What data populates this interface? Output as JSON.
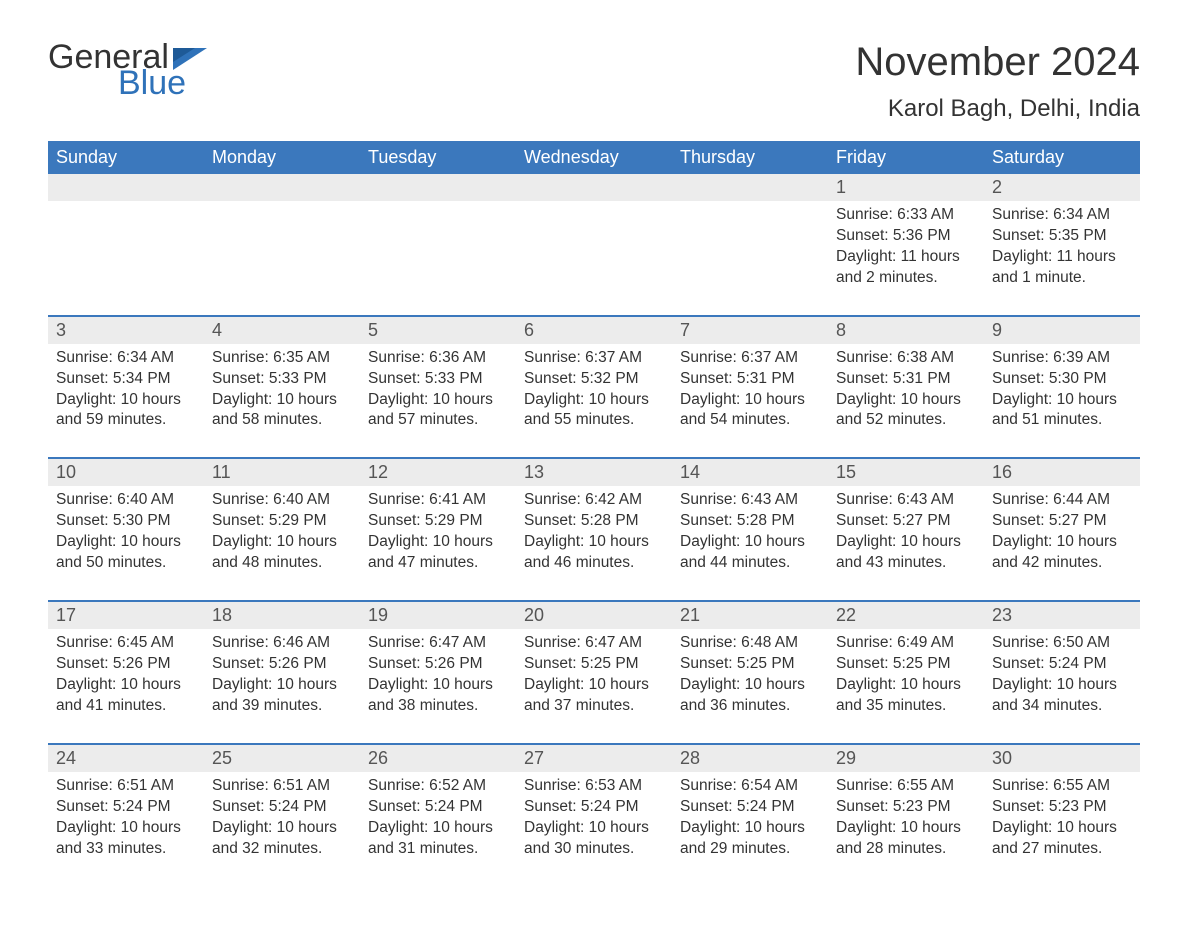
{
  "logo": {
    "text_general": "General",
    "text_blue": "Blue",
    "flag_color": "#2f72b9"
  },
  "title": "November 2024",
  "location": "Karol Bagh, Delhi, India",
  "colors": {
    "header_bg": "#3b78bd",
    "header_fg": "#ffffff",
    "accent_border": "#3b78bd",
    "daynum_bg": "#ececec",
    "text": "#333333",
    "page_bg": "#ffffff"
  },
  "typography": {
    "title_fontsize_pt": 30,
    "location_fontsize_pt": 18,
    "dayhdr_fontsize_pt": 14,
    "daynum_fontsize_pt": 14,
    "body_fontsize_pt": 12
  },
  "layout": {
    "columns": 7,
    "rows": 5,
    "week_start": "Sunday"
  },
  "day_headers": [
    "Sunday",
    "Monday",
    "Tuesday",
    "Wednesday",
    "Thursday",
    "Friday",
    "Saturday"
  ],
  "labels": {
    "sunrise": "Sunrise:",
    "sunset": "Sunset:",
    "daylight": "Daylight:"
  },
  "weeks": [
    [
      null,
      null,
      null,
      null,
      null,
      {
        "n": 1,
        "sunrise": "6:33 AM",
        "sunset": "5:36 PM",
        "daylight": "11 hours and 2 minutes."
      },
      {
        "n": 2,
        "sunrise": "6:34 AM",
        "sunset": "5:35 PM",
        "daylight": "11 hours and 1 minute."
      }
    ],
    [
      {
        "n": 3,
        "sunrise": "6:34 AM",
        "sunset": "5:34 PM",
        "daylight": "10 hours and 59 minutes."
      },
      {
        "n": 4,
        "sunrise": "6:35 AM",
        "sunset": "5:33 PM",
        "daylight": "10 hours and 58 minutes."
      },
      {
        "n": 5,
        "sunrise": "6:36 AM",
        "sunset": "5:33 PM",
        "daylight": "10 hours and 57 minutes."
      },
      {
        "n": 6,
        "sunrise": "6:37 AM",
        "sunset": "5:32 PM",
        "daylight": "10 hours and 55 minutes."
      },
      {
        "n": 7,
        "sunrise": "6:37 AM",
        "sunset": "5:31 PM",
        "daylight": "10 hours and 54 minutes."
      },
      {
        "n": 8,
        "sunrise": "6:38 AM",
        "sunset": "5:31 PM",
        "daylight": "10 hours and 52 minutes."
      },
      {
        "n": 9,
        "sunrise": "6:39 AM",
        "sunset": "5:30 PM",
        "daylight": "10 hours and 51 minutes."
      }
    ],
    [
      {
        "n": 10,
        "sunrise": "6:40 AM",
        "sunset": "5:30 PM",
        "daylight": "10 hours and 50 minutes."
      },
      {
        "n": 11,
        "sunrise": "6:40 AM",
        "sunset": "5:29 PM",
        "daylight": "10 hours and 48 minutes."
      },
      {
        "n": 12,
        "sunrise": "6:41 AM",
        "sunset": "5:29 PM",
        "daylight": "10 hours and 47 minutes."
      },
      {
        "n": 13,
        "sunrise": "6:42 AM",
        "sunset": "5:28 PM",
        "daylight": "10 hours and 46 minutes."
      },
      {
        "n": 14,
        "sunrise": "6:43 AM",
        "sunset": "5:28 PM",
        "daylight": "10 hours and 44 minutes."
      },
      {
        "n": 15,
        "sunrise": "6:43 AM",
        "sunset": "5:27 PM",
        "daylight": "10 hours and 43 minutes."
      },
      {
        "n": 16,
        "sunrise": "6:44 AM",
        "sunset": "5:27 PM",
        "daylight": "10 hours and 42 minutes."
      }
    ],
    [
      {
        "n": 17,
        "sunrise": "6:45 AM",
        "sunset": "5:26 PM",
        "daylight": "10 hours and 41 minutes."
      },
      {
        "n": 18,
        "sunrise": "6:46 AM",
        "sunset": "5:26 PM",
        "daylight": "10 hours and 39 minutes."
      },
      {
        "n": 19,
        "sunrise": "6:47 AM",
        "sunset": "5:26 PM",
        "daylight": "10 hours and 38 minutes."
      },
      {
        "n": 20,
        "sunrise": "6:47 AM",
        "sunset": "5:25 PM",
        "daylight": "10 hours and 37 minutes."
      },
      {
        "n": 21,
        "sunrise": "6:48 AM",
        "sunset": "5:25 PM",
        "daylight": "10 hours and 36 minutes."
      },
      {
        "n": 22,
        "sunrise": "6:49 AM",
        "sunset": "5:25 PM",
        "daylight": "10 hours and 35 minutes."
      },
      {
        "n": 23,
        "sunrise": "6:50 AM",
        "sunset": "5:24 PM",
        "daylight": "10 hours and 34 minutes."
      }
    ],
    [
      {
        "n": 24,
        "sunrise": "6:51 AM",
        "sunset": "5:24 PM",
        "daylight": "10 hours and 33 minutes."
      },
      {
        "n": 25,
        "sunrise": "6:51 AM",
        "sunset": "5:24 PM",
        "daylight": "10 hours and 32 minutes."
      },
      {
        "n": 26,
        "sunrise": "6:52 AM",
        "sunset": "5:24 PM",
        "daylight": "10 hours and 31 minutes."
      },
      {
        "n": 27,
        "sunrise": "6:53 AM",
        "sunset": "5:24 PM",
        "daylight": "10 hours and 30 minutes."
      },
      {
        "n": 28,
        "sunrise": "6:54 AM",
        "sunset": "5:24 PM",
        "daylight": "10 hours and 29 minutes."
      },
      {
        "n": 29,
        "sunrise": "6:55 AM",
        "sunset": "5:23 PM",
        "daylight": "10 hours and 28 minutes."
      },
      {
        "n": 30,
        "sunrise": "6:55 AM",
        "sunset": "5:23 PM",
        "daylight": "10 hours and 27 minutes."
      }
    ]
  ]
}
